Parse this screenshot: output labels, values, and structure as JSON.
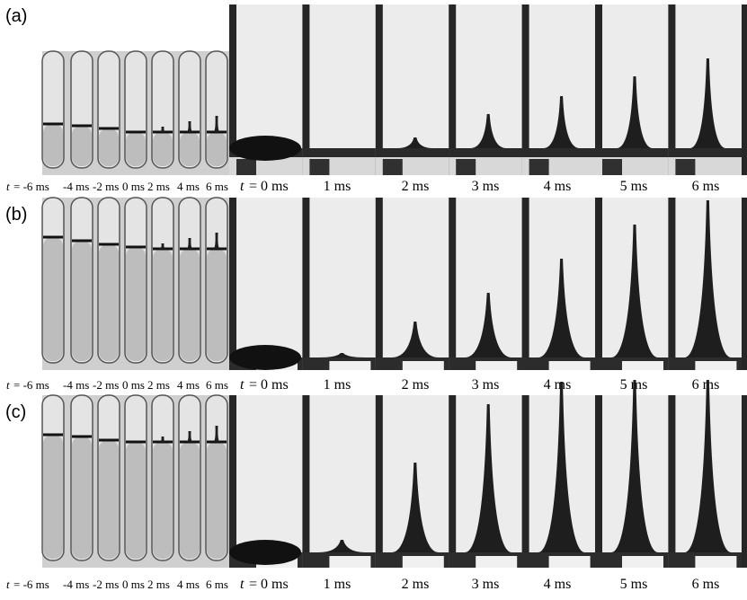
{
  "figure": {
    "panels": [
      {
        "label": "(a)",
        "small_symbol": "t",
        "small_labels": [
          "= -6 ms",
          "-4 ms",
          "-2 ms",
          "0 ms",
          "2 ms",
          "4 ms",
          "6 ms"
        ],
        "large_symbol": "t",
        "large_labels": [
          "= 0 ms",
          "1 ms",
          "2 ms",
          "3 ms",
          "4 ms",
          "5 ms",
          "6 ms"
        ]
      },
      {
        "label": "(b)",
        "small_symbol": "t",
        "small_labels": [
          "= -6 ms",
          "-4 ms",
          "-2 ms",
          "0 ms",
          "2 ms",
          "4 ms",
          "6 ms"
        ],
        "large_symbol": "t",
        "large_labels": [
          "= 0 ms",
          "1 ms",
          "2 ms",
          "3 ms",
          "4 ms",
          "5 ms",
          "6 ms"
        ]
      },
      {
        "label": "(c)",
        "small_symbol": "t",
        "small_labels": [
          "= -6 ms",
          "-4 ms",
          "-2 ms",
          "0 ms",
          "2 ms",
          "4 ms",
          "6 ms"
        ],
        "large_symbol": "t",
        "large_labels": [
          "= 0 ms",
          "1 ms",
          "2 ms",
          "3 ms",
          "4 ms",
          "5 ms",
          "6 ms"
        ]
      }
    ]
  }
}
